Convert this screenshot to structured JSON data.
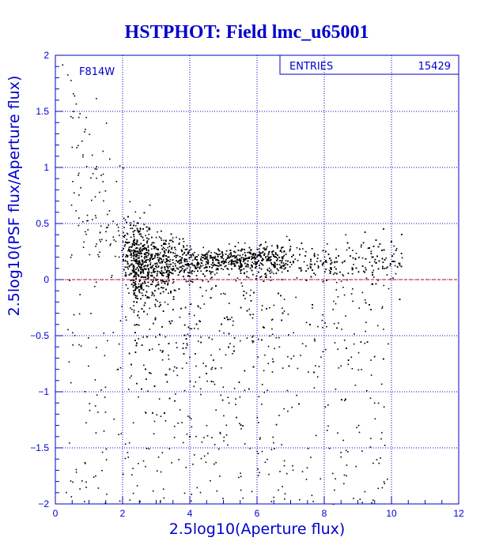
{
  "colors": {
    "axis": "#0000cc",
    "grid": "#0000cc",
    "points": "#000000",
    "zero_line": "#cc0000",
    "title": "#0000cc"
  },
  "chart_data": {
    "type": "scatter",
    "title": "HSTPHOT: Field lmc_u65001",
    "xlabel": "2.5log10(Aperture flux)",
    "ylabel": "2.5log10(PSF flux/Aperture flux)",
    "xlim": [
      0,
      12
    ],
    "ylim": [
      -2,
      2
    ],
    "x_ticks": [
      0,
      2,
      4,
      6,
      8,
      10,
      12
    ],
    "y_ticks": [
      -2,
      -1.5,
      -1,
      -0.5,
      0,
      0.5,
      1,
      1.5,
      2
    ],
    "x_tick_labels": [
      "0",
      "2",
      "4",
      "6",
      "8",
      "10",
      "12"
    ],
    "y_tick_labels": [
      "−2",
      "−1.5",
      "−1",
      "−0.5",
      "0",
      "0.5",
      "1",
      "1.5",
      "2"
    ],
    "grid": true,
    "reference_line_y": 0,
    "filter_label": "F814W",
    "stats_box": {
      "label": "ENTRIES",
      "value": "15429"
    },
    "entries": 15429,
    "series": [
      {
        "locus": [
          [
            2.0,
            0.18
          ],
          [
            2.5,
            0.17
          ],
          [
            3.0,
            0.16
          ],
          [
            3.5,
            0.16
          ],
          [
            4.0,
            0.17
          ],
          [
            5.0,
            0.18
          ],
          [
            6.0,
            0.19
          ],
          [
            7.0,
            0.18
          ],
          [
            8.0,
            0.17
          ],
          [
            9.0,
            0.17
          ],
          [
            10.2,
            0.18
          ]
        ],
        "points": [
          [
            0.2,
            1.92
          ],
          [
            0.35,
            1.83
          ],
          [
            0.45,
            1.78
          ],
          [
            0.9,
            1.45
          ],
          [
            1.2,
            1.62
          ],
          [
            1.5,
            1.4
          ],
          [
            1.0,
            1.3
          ],
          [
            1.4,
            1.15
          ],
          [
            1.6,
            1.08
          ],
          [
            1.9,
            1.02
          ],
          [
            2.0,
            1.0
          ],
          [
            0.8,
            1.1
          ],
          [
            1.1,
            0.95
          ],
          [
            1.8,
            0.88
          ],
          [
            2.2,
            0.7
          ],
          [
            0.6,
            0.62
          ],
          [
            0.95,
            0.45
          ],
          [
            1.3,
            0.25
          ],
          [
            0.7,
            -0.3
          ],
          [
            1.2,
            -0.6
          ],
          [
            1.0,
            -1.1
          ],
          [
            1.5,
            -1.6
          ],
          [
            0.5,
            -1.8
          ],
          [
            2.3,
            -1.9
          ],
          [
            4.2,
            -1.85
          ],
          [
            5.5,
            -1.75
          ],
          [
            6.8,
            -1.95
          ],
          [
            7.5,
            -1.5
          ],
          [
            8.1,
            -1.3
          ],
          [
            9.0,
            -0.8
          ],
          [
            9.7,
            -0.25
          ],
          [
            10.2,
            0.15
          ],
          [
            10.3,
            0.2
          ],
          [
            3.0,
            -1.2
          ],
          [
            5.0,
            -1.4
          ],
          [
            6.2,
            -1.0
          ],
          [
            4.5,
            -0.9
          ],
          [
            7.0,
            -0.7
          ],
          [
            2.7,
            -1.5
          ],
          [
            3.6,
            -0.6
          ]
        ]
      }
    ]
  }
}
